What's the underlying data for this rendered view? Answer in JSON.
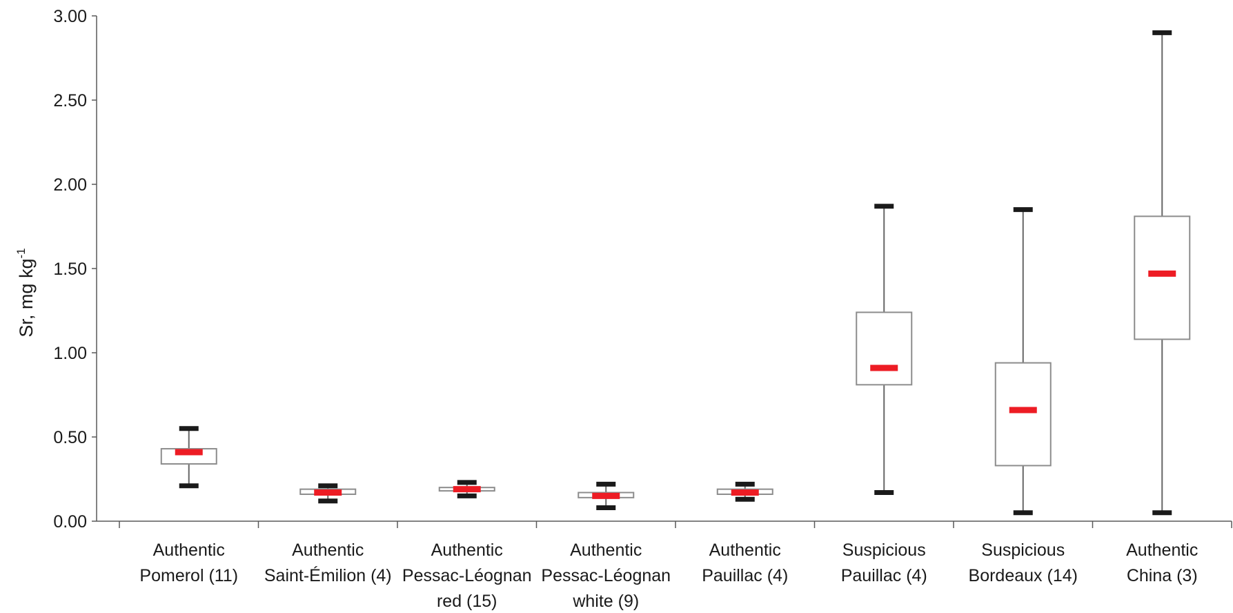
{
  "chart_data": {
    "type": "boxplot",
    "title": "",
    "ylabel": {
      "text": "Sr, mg kg",
      "superscript": "-1"
    },
    "xlabel": "",
    "ylim": [
      0,
      3
    ],
    "yticks": [
      "0.00",
      "0.50",
      "1.00",
      "1.50",
      "2.00",
      "2.50",
      "3.00"
    ],
    "ytick_values": [
      0,
      0.5,
      1,
      1.5,
      2,
      2.5,
      3
    ],
    "grid": false,
    "legend": "none",
    "colors": {
      "box": "#8c8c8c",
      "whisker": "#666666",
      "cap": "#1a1a1a",
      "median": "#ed1c24",
      "axis": "#595959"
    },
    "categories": [
      {
        "label": [
          "Authentic",
          "Pomerol (11)"
        ],
        "min": 0.21,
        "q1": 0.34,
        "median": 0.41,
        "q3": 0.43,
        "max": 0.55
      },
      {
        "label": [
          "Authentic",
          "Saint-Émilion (4)"
        ],
        "min": 0.12,
        "q1": 0.16,
        "median": 0.17,
        "q3": 0.19,
        "max": 0.21
      },
      {
        "label": [
          "Authentic",
          "Pessac-Léognan",
          "red (15)"
        ],
        "min": 0.15,
        "q1": 0.18,
        "median": 0.19,
        "q3": 0.2,
        "max": 0.23
      },
      {
        "label": [
          "Authentic",
          "Pessac-Léognan",
          "white (9)"
        ],
        "min": 0.08,
        "q1": 0.14,
        "median": 0.15,
        "q3": 0.17,
        "max": 0.22
      },
      {
        "label": [
          "Authentic",
          "Pauillac  (4)"
        ],
        "min": 0.13,
        "q1": 0.16,
        "median": 0.17,
        "q3": 0.19,
        "max": 0.22
      },
      {
        "label": [
          "Suspicious",
          "Pauillac (4)"
        ],
        "min": 0.17,
        "q1": 0.81,
        "median": 0.91,
        "q3": 1.24,
        "max": 1.87
      },
      {
        "label": [
          "Suspicious",
          "Bordeaux (14)"
        ],
        "min": 0.05,
        "q1": 0.33,
        "median": 0.66,
        "q3": 0.94,
        "max": 1.85
      },
      {
        "label": [
          "Authentic",
          "China (3)"
        ],
        "min": 0.05,
        "q1": 1.08,
        "median": 1.47,
        "q3": 1.81,
        "max": 2.9
      }
    ]
  }
}
